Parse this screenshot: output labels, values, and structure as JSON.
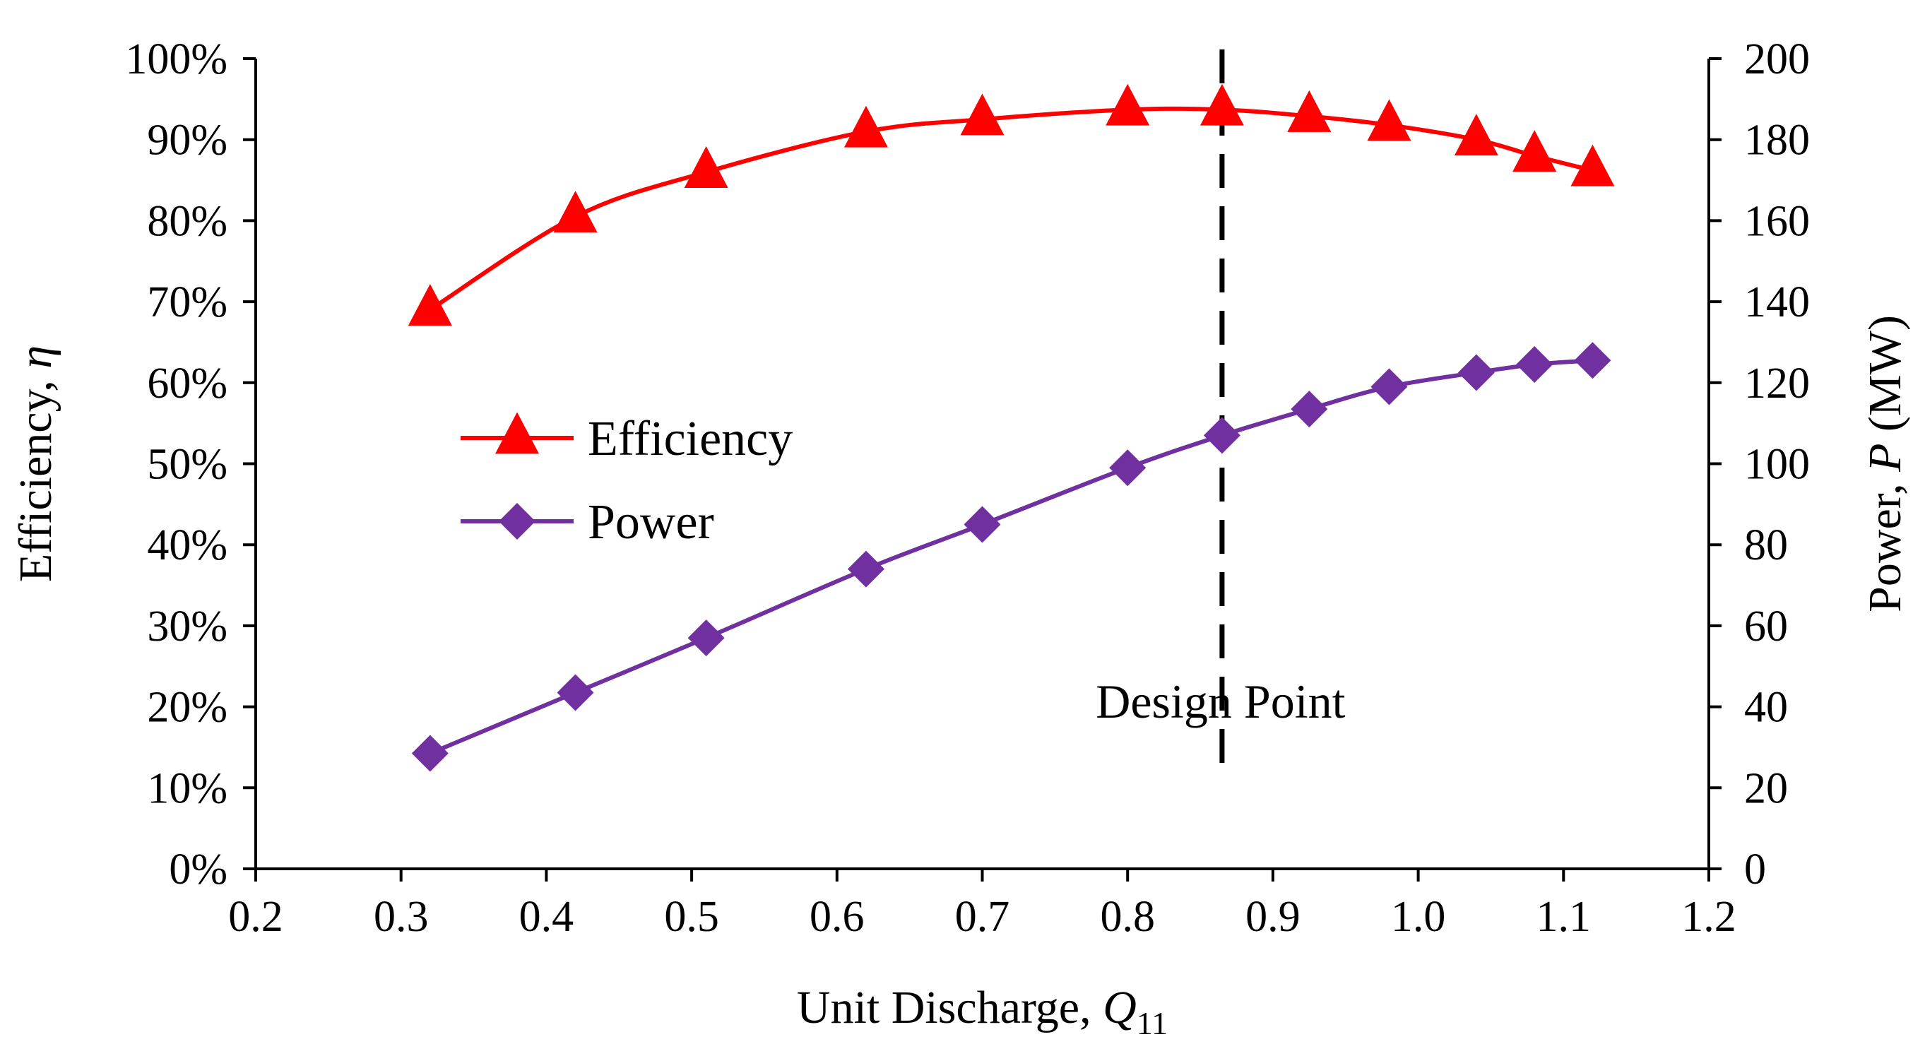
{
  "chart_data": {
    "type": "line",
    "title": "",
    "x": [
      0.32,
      0.42,
      0.51,
      0.62,
      0.7,
      0.8,
      0.865,
      0.925,
      0.98,
      1.04,
      1.08,
      1.12
    ],
    "series": [
      {
        "name": "Efficiency",
        "axis": "left",
        "color": "#ff0000",
        "marker": "triangle",
        "values": [
          0.69,
          0.805,
          0.86,
          0.91,
          0.925,
          0.937,
          0.937,
          0.929,
          0.918,
          0.9,
          0.88,
          0.862
        ]
      },
      {
        "name": "Power",
        "axis": "right",
        "color": "#7030a0",
        "marker": "diamond",
        "values": [
          28.5,
          43.5,
          57,
          74,
          85,
          99,
          107,
          113.5,
          119,
          122.5,
          124.5,
          125.5
        ]
      }
    ],
    "xlabel": {
      "main": "Unit Discharge, ",
      "var": "Q",
      "sub": "11"
    },
    "ylabel_left": {
      "main": "Efficiency, ",
      "var": "η"
    },
    "ylabel_right": {
      "main": "Power, ",
      "var": "P",
      "unit": " (MW)"
    },
    "xlim": [
      0.2,
      1.2
    ],
    "ylim_left": [
      0,
      1
    ],
    "ylim_right": [
      0,
      200
    ],
    "xticks": [
      "0.2",
      "0.3",
      "0.4",
      "0.5",
      "0.6",
      "0.7",
      "0.8",
      "0.9",
      "1.0",
      "1.1",
      "1.2"
    ],
    "yticks_left": [
      "0%",
      "10%",
      "20%",
      "30%",
      "40%",
      "50%",
      "60%",
      "70%",
      "80%",
      "90%",
      "100%"
    ],
    "yticks_right": [
      "0",
      "20",
      "40",
      "60",
      "80",
      "100",
      "120",
      "140",
      "160",
      "180",
      "200"
    ],
    "grid": false,
    "legend": {
      "position": "center-left",
      "entries": [
        "Efficiency",
        "Power"
      ]
    },
    "design_point": {
      "x": 0.865,
      "label": "Design Point",
      "line_style": "dashed"
    }
  }
}
